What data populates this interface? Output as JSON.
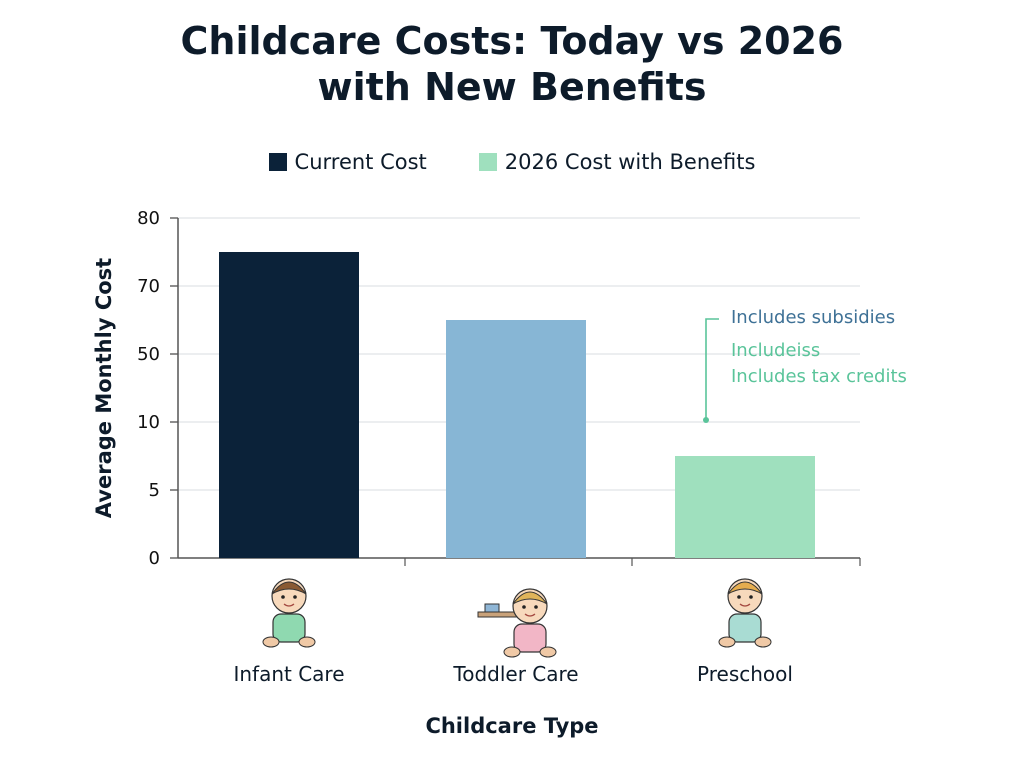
{
  "title_line1": "Childcare Costs: Today vs 2026",
  "title_line2": "with New Benefits",
  "legend": [
    {
      "label": "Current Cost",
      "color": "#0b2239"
    },
    {
      "label": "2026 Cost with Benefits",
      "color": "#9fe0be"
    }
  ],
  "annotations": {
    "line1": "Includes subsidies",
    "line2": "Includeiss",
    "line3": "Includes tax credits",
    "line1_color": "#3e7196",
    "line2_color": "#5ac49a"
  },
  "chart_data": {
    "type": "bar",
    "title": "Childcare Costs: Today vs 2026 with New Benefits",
    "xlabel": "Childcare Type",
    "ylabel": "Average Monthly Cost",
    "yticks": [
      "0",
      "5",
      "10",
      "50",
      "70",
      "80"
    ],
    "categories": [
      "Infant Care",
      "Toddler Care",
      "Preschool"
    ],
    "bars": [
      {
        "category": "Infant Care",
        "value": 75,
        "color": "#0b2239"
      },
      {
        "category": "Toddler Care",
        "value": 60,
        "color": "#87b6d5"
      },
      {
        "category": "Preschool",
        "value": 7.5,
        "color": "#9fe0be"
      }
    ],
    "grid": true,
    "legend_position": "top"
  }
}
